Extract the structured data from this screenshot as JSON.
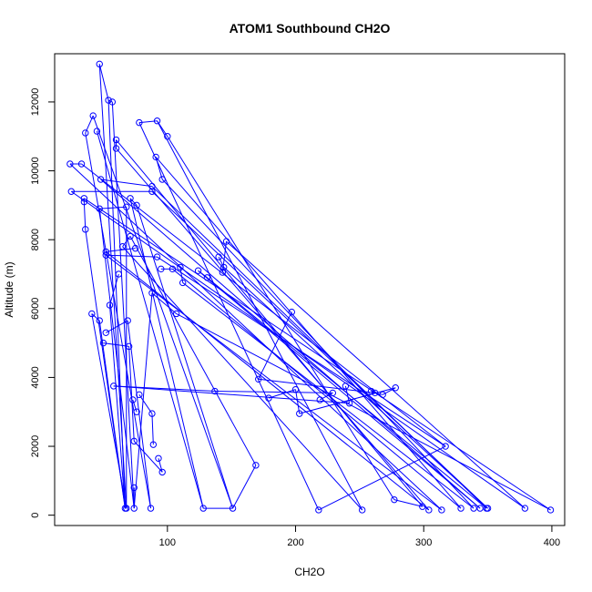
{
  "chart_data": {
    "type": "line",
    "title": "ATOM1 Southbound CH2O",
    "xlabel": "CH2O",
    "ylabel": "Altitude (m)",
    "xlim": [
      12,
      410
    ],
    "ylim": [
      -300,
      13400
    ],
    "xticks": [
      100,
      200,
      300,
      400
    ],
    "yticks": [
      0,
      2000,
      4000,
      6000,
      8000,
      10000,
      12000
    ],
    "color": "#0000ff",
    "marker": "open-circle",
    "points": [
      [
        47,
        13100
      ],
      [
        54,
        12050
      ],
      [
        57,
        12000
      ],
      [
        45,
        11150
      ],
      [
        42,
        11600
      ],
      [
        36,
        11100
      ],
      [
        78,
        11400
      ],
      [
        92,
        11450
      ],
      [
        100,
        11000
      ],
      [
        60,
        10900
      ],
      [
        60,
        10650
      ],
      [
        24,
        10200
      ],
      [
        33,
        10200
      ],
      [
        91,
        10400
      ],
      [
        96,
        9750
      ],
      [
        48,
        9750
      ],
      [
        88,
        9550
      ],
      [
        88,
        9400
      ],
      [
        25,
        9400
      ],
      [
        35,
        9200
      ],
      [
        35,
        9100
      ],
      [
        36,
        8300
      ],
      [
        47,
        8900
      ],
      [
        68,
        8950
      ],
      [
        71,
        9200
      ],
      [
        76,
        9000
      ],
      [
        71,
        8100
      ],
      [
        65,
        7800
      ],
      [
        75,
        7750
      ],
      [
        52,
        7650
      ],
      [
        52,
        7550
      ],
      [
        92,
        7500
      ],
      [
        95,
        7150
      ],
      [
        104,
        7150
      ],
      [
        110,
        7200
      ],
      [
        112,
        6750
      ],
      [
        124,
        7100
      ],
      [
        131,
        6900
      ],
      [
        140,
        7500
      ],
      [
        144,
        7200
      ],
      [
        143,
        7050
      ],
      [
        146,
        7950
      ],
      [
        62,
        7000
      ],
      [
        55,
        6100
      ],
      [
        88,
        6450
      ],
      [
        107,
        5850
      ],
      [
        41,
        5850
      ],
      [
        47,
        5650
      ],
      [
        52,
        5300
      ],
      [
        69,
        5650
      ],
      [
        50,
        5000
      ],
      [
        70,
        4900
      ],
      [
        197,
        5900
      ],
      [
        171,
        3950
      ],
      [
        179,
        3400
      ],
      [
        200,
        3650
      ],
      [
        203,
        2950
      ],
      [
        219,
        3350
      ],
      [
        229,
        3550
      ],
      [
        239,
        3750
      ],
      [
        242,
        3250
      ],
      [
        259,
        3600
      ],
      [
        262,
        3550
      ],
      [
        268,
        3500
      ],
      [
        278,
        3700
      ],
      [
        137,
        3600
      ],
      [
        58,
        3750
      ],
      [
        73,
        3350
      ],
      [
        76,
        3000
      ],
      [
        78,
        3500
      ],
      [
        88,
        2950
      ],
      [
        89,
        2050
      ],
      [
        93,
        1650
      ],
      [
        96,
        1250
      ],
      [
        74,
        2150
      ],
      [
        74,
        800
      ],
      [
        74,
        200
      ],
      [
        67,
        200
      ],
      [
        68,
        200
      ],
      [
        128,
        200
      ],
      [
        151,
        200
      ],
      [
        169,
        1450
      ],
      [
        218,
        150
      ],
      [
        252,
        150
      ],
      [
        277,
        450
      ],
      [
        299,
        250
      ],
      [
        304,
        150
      ],
      [
        314,
        150
      ],
      [
        317,
        2000
      ],
      [
        329,
        200
      ],
      [
        339,
        200
      ],
      [
        344,
        200
      ],
      [
        349,
        200
      ],
      [
        350,
        200
      ],
      [
        379,
        200
      ],
      [
        399,
        150
      ],
      [
        87,
        200
      ]
    ],
    "segments": [
      [
        0,
        1
      ],
      [
        1,
        2
      ],
      [
        4,
        5
      ],
      [
        6,
        7
      ],
      [
        7,
        8
      ],
      [
        9,
        10
      ],
      [
        11,
        12
      ],
      [
        13,
        14
      ],
      [
        15,
        16
      ],
      [
        17,
        18
      ],
      [
        19,
        20
      ],
      [
        20,
        21
      ],
      [
        22,
        23
      ],
      [
        24,
        25
      ],
      [
        26,
        27
      ],
      [
        28,
        29
      ],
      [
        30,
        31
      ],
      [
        32,
        33
      ],
      [
        34,
        35
      ],
      [
        36,
        37
      ],
      [
        38,
        39
      ],
      [
        40,
        41
      ],
      [
        42,
        43
      ],
      [
        44,
        45
      ],
      [
        46,
        47
      ],
      [
        48,
        49
      ],
      [
        50,
        51
      ],
      [
        52,
        53
      ],
      [
        54,
        55
      ],
      [
        55,
        56
      ],
      [
        57,
        58
      ],
      [
        59,
        60
      ],
      [
        61,
        62
      ],
      [
        63,
        64
      ],
      [
        65,
        66
      ],
      [
        67,
        68
      ],
      [
        69,
        70
      ],
      [
        70,
        71
      ],
      [
        72,
        73
      ],
      [
        73,
        74
      ],
      [
        75,
        76
      ],
      [
        77,
        78
      ],
      [
        79,
        80
      ],
      [
        80,
        81
      ],
      [
        82,
        88
      ],
      [
        84,
        85
      ],
      [
        0,
        78
      ],
      [
        1,
        77
      ],
      [
        2,
        76
      ],
      [
        3,
        79
      ],
      [
        4,
        80
      ],
      [
        5,
        96
      ],
      [
        6,
        82
      ],
      [
        7,
        83
      ],
      [
        8,
        84
      ],
      [
        9,
        85
      ],
      [
        10,
        86
      ],
      [
        11,
        87
      ],
      [
        12,
        88
      ],
      [
        13,
        89
      ],
      [
        14,
        90
      ],
      [
        15,
        91
      ],
      [
        16,
        92
      ],
      [
        17,
        93
      ],
      [
        18,
        94
      ],
      [
        19,
        95
      ],
      [
        21,
        77
      ],
      [
        22,
        76
      ],
      [
        23,
        78
      ],
      [
        24,
        79
      ],
      [
        25,
        80
      ],
      [
        26,
        81
      ],
      [
        27,
        83
      ],
      [
        29,
        86
      ],
      [
        30,
        87
      ],
      [
        31,
        88
      ],
      [
        33,
        89
      ],
      [
        35,
        90
      ],
      [
        36,
        91
      ],
      [
        37,
        92
      ],
      [
        39,
        93
      ],
      [
        41,
        94
      ],
      [
        43,
        77
      ],
      [
        44,
        76
      ],
      [
        45,
        95
      ],
      [
        46,
        78
      ],
      [
        47,
        77
      ],
      [
        49,
        96
      ],
      [
        51,
        74
      ],
      [
        53,
        62
      ],
      [
        56,
        64
      ],
      [
        58,
        65
      ],
      [
        60,
        66
      ],
      [
        62,
        63
      ]
    ]
  }
}
